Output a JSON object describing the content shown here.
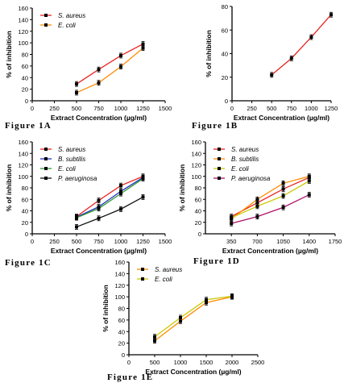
{
  "captions": [
    "Figure 1A",
    "Figure 1B",
    "Figure 1C",
    "Figure 1D",
    "Figure 1E"
  ],
  "colors": {
    "red": "#e8251f",
    "orange": "#ff8c00",
    "blue": "#1f2fbf",
    "green": "#2e9b2e",
    "black": "#111111",
    "yellow": "#c8c800",
    "magenta": "#b0106a"
  },
  "chart_data": [
    {
      "id": "A",
      "type": "line",
      "xlabel": "Extract Concentration (µg/ml)",
      "ylabel": "% of inhibition",
      "xlim": [
        0,
        1500
      ],
      "ylim": [
        0,
        160
      ],
      "xticks": [
        0,
        250,
        500,
        750,
        1000,
        1250,
        1500
      ],
      "yticks": [
        0,
        20,
        40,
        60,
        80,
        100,
        120,
        140,
        160
      ],
      "legend_position": "top-left",
      "x": [
        500,
        750,
        1000,
        1250
      ],
      "series": [
        {
          "name": "S. aureus",
          "color": "red",
          "values": [
            29,
            54,
            78,
            98
          ]
        },
        {
          "name": "E. coli",
          "color": "orange",
          "values": [
            14,
            31,
            59,
            91
          ]
        }
      ]
    },
    {
      "id": "B",
      "type": "line",
      "xlabel": "Extract Concentration (µg/ml)",
      "ylabel": "% of inhibition",
      "xlim": [
        0,
        1250
      ],
      "ylim": [
        0,
        80
      ],
      "xticks": [
        0,
        250,
        500,
        750,
        1000,
        1250
      ],
      "yticks": [
        0,
        20,
        40,
        60,
        80
      ],
      "x": [
        500,
        750,
        1000,
        1250
      ],
      "series": [
        {
          "name": "",
          "color": "red",
          "values": [
            22,
            36,
            54,
            73
          ]
        }
      ]
    },
    {
      "id": "C",
      "type": "line",
      "xlabel": "Extract Concentration (µg/ml)",
      "ylabel": "% of inhibition",
      "xlim": [
        0,
        1500
      ],
      "ylim": [
        0,
        160
      ],
      "xticks": [
        0,
        250,
        500,
        750,
        1000,
        1250,
        1500
      ],
      "yticks": [
        0,
        20,
        40,
        60,
        80,
        100,
        120,
        140,
        160
      ],
      "legend_position": "top-left",
      "x": [
        500,
        750,
        1000,
        1250
      ],
      "series": [
        {
          "name": "S. aureus",
          "color": "red",
          "values": [
            30,
            58,
            84,
            100
          ]
        },
        {
          "name": "B. subtilis",
          "color": "blue",
          "values": [
            29,
            47,
            74,
            98
          ]
        },
        {
          "name": "E. coli",
          "color": "green",
          "values": [
            28,
            44,
            70,
            96
          ]
        },
        {
          "name": "P. aeruginosa",
          "color": "black",
          "values": [
            12,
            27,
            43,
            64
          ]
        }
      ]
    },
    {
      "id": "D",
      "type": "line",
      "xlabel": "Extract Concentration (µg/ml)",
      "ylabel": "% of inhibition",
      "xlim": [
        0,
        1750
      ],
      "ylim": [
        0,
        160
      ],
      "xticks": [
        350,
        700,
        1050,
        1400,
        1750
      ],
      "yticks": [
        0,
        20,
        40,
        60,
        80,
        100,
        120,
        140,
        160
      ],
      "legend_position": "top-left",
      "x": [
        350,
        700,
        1050,
        1400
      ],
      "series": [
        {
          "name": "S. aureus",
          "color": "red",
          "values": [
            30,
            54,
            78,
            98
          ]
        },
        {
          "name": "B. subtilis",
          "color": "orange",
          "values": [
            26,
            60,
            88,
            100
          ]
        },
        {
          "name": "E. coli",
          "color": "yellow",
          "values": [
            28,
            48,
            66,
            92
          ]
        },
        {
          "name": "P. aeruginosa",
          "color": "magenta",
          "values": [
            18,
            30,
            46,
            68
          ]
        }
      ]
    },
    {
      "id": "E",
      "type": "line",
      "xlabel": "Extract Concentration (µg/ml)",
      "ylabel": "% of inhibition",
      "xlim": [
        0,
        2500
      ],
      "ylim": [
        0,
        160
      ],
      "xticks": [
        0,
        500,
        1000,
        1500,
        2000,
        2500
      ],
      "yticks": [
        0,
        20,
        40,
        60,
        80,
        100,
        120,
        140,
        160
      ],
      "legend_position": "top-left",
      "x": [
        500,
        1000,
        1500,
        2000
      ],
      "series": [
        {
          "name": "S. aureus",
          "color": "orange",
          "values": [
            24,
            58,
            90,
            100
          ]
        },
        {
          "name": "E. coli",
          "color": "yellow",
          "values": [
            31,
            64,
            95,
            101
          ]
        }
      ]
    }
  ]
}
